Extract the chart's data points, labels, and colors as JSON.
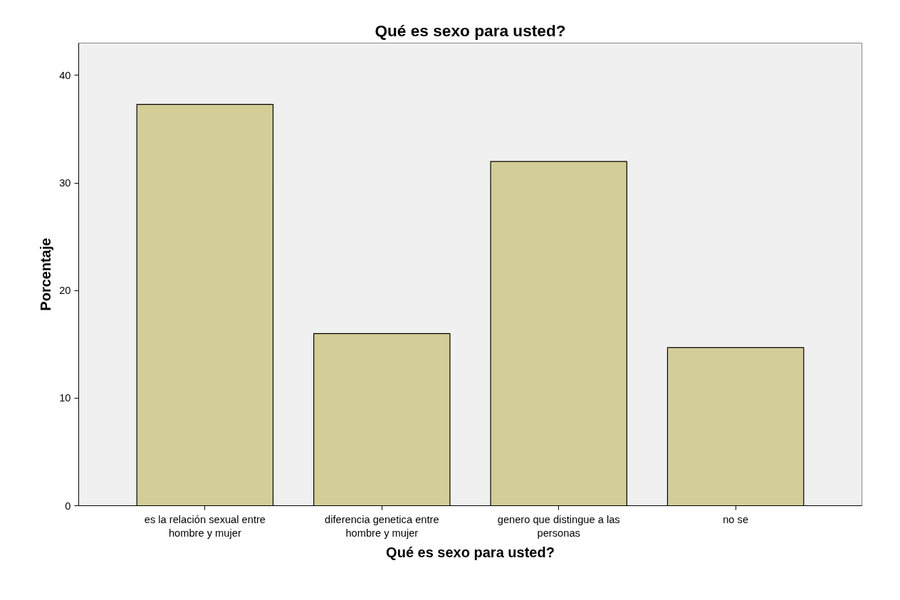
{
  "chart_data": {
    "type": "bar",
    "title": "Qué es sexo para usted?",
    "xlabel": "Qué es sexo para usted?",
    "ylabel": "Porcentaje",
    "categories": [
      "es la relación sexual entre\nhombre y mujer",
      "diferencia genetica entre\nhombre y mujer",
      "genero que distingue a las\npersonas",
      "no se"
    ],
    "values": [
      37.3,
      16.0,
      32.0,
      14.7
    ],
    "color": "#d3ce97",
    "ylim": [
      0,
      43
    ],
    "yticks": [
      0,
      10,
      20,
      30,
      40
    ],
    "grid": false
  }
}
